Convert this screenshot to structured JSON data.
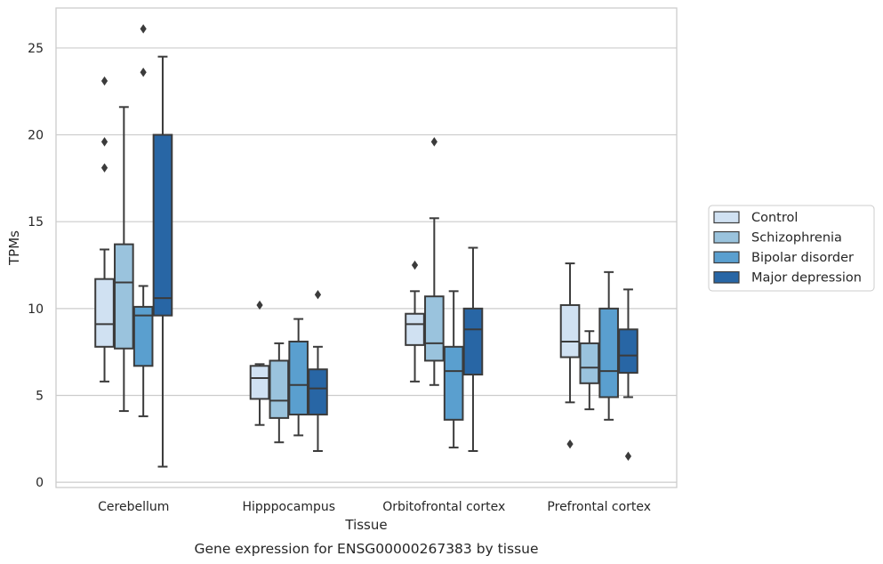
{
  "chart_data": {
    "type": "boxplot",
    "caption": "Gene expression for ENSG00000267383 by tissue",
    "xlabel": "Tissue",
    "ylabel": "TPMs",
    "ylim": [
      -0.3,
      27.3
    ],
    "yticks": [
      0,
      5,
      10,
      15,
      20,
      25
    ],
    "grid": "horizontal",
    "legend_position": "right",
    "categories": [
      "Cerebellum",
      "Hipppocampus",
      "Orbitofrontal cortex",
      "Prefrontal cortex"
    ],
    "series": [
      {
        "name": "Control",
        "color": "#d0e1f2",
        "boxes": [
          {
            "whisker_low": 5.8,
            "q1": 7.8,
            "median": 9.1,
            "q3": 11.7,
            "whisker_high": 13.4,
            "outliers": [
              18.1,
              19.6,
              23.1
            ]
          },
          {
            "whisker_low": 3.3,
            "q1": 4.8,
            "median": 6.0,
            "q3": 6.7,
            "whisker_high": 6.8,
            "outliers": [
              10.2
            ]
          },
          {
            "whisker_low": 5.8,
            "q1": 7.9,
            "median": 9.1,
            "q3": 9.7,
            "whisker_high": 11.0,
            "outliers": [
              12.5
            ]
          },
          {
            "whisker_low": 4.6,
            "q1": 7.2,
            "median": 8.1,
            "q3": 10.2,
            "whisker_high": 12.6,
            "outliers": [
              2.2
            ]
          }
        ]
      },
      {
        "name": "Schizophrenia",
        "color": "#9ac3dd",
        "boxes": [
          {
            "whisker_low": 4.1,
            "q1": 7.7,
            "median": 11.5,
            "q3": 13.7,
            "whisker_high": 21.6,
            "outliers": []
          },
          {
            "whisker_low": 2.3,
            "q1": 3.7,
            "median": 4.7,
            "q3": 7.0,
            "whisker_high": 8.0,
            "outliers": []
          },
          {
            "whisker_low": 5.6,
            "q1": 7.0,
            "median": 8.0,
            "q3": 10.7,
            "whisker_high": 15.2,
            "outliers": [
              19.6
            ]
          },
          {
            "whisker_low": 4.2,
            "q1": 5.7,
            "median": 6.6,
            "q3": 8.0,
            "whisker_high": 8.7,
            "outliers": []
          }
        ]
      },
      {
        "name": "Bipolar disorder",
        "color": "#5a9fcf",
        "boxes": [
          {
            "whisker_low": 3.8,
            "q1": 6.7,
            "median": 9.6,
            "q3": 10.1,
            "whisker_high": 11.3,
            "outliers": [
              23.6,
              26.1
            ]
          },
          {
            "whisker_low": 2.7,
            "q1": 3.9,
            "median": 5.6,
            "q3": 8.1,
            "whisker_high": 9.4,
            "outliers": []
          },
          {
            "whisker_low": 2.0,
            "q1": 3.6,
            "median": 6.4,
            "q3": 7.8,
            "whisker_high": 11.0,
            "outliers": []
          },
          {
            "whisker_low": 3.6,
            "q1": 4.9,
            "median": 6.4,
            "q3": 10.0,
            "whisker_high": 12.1,
            "outliers": []
          }
        ]
      },
      {
        "name": "Major depression",
        "color": "#2866a5",
        "boxes": [
          {
            "whisker_low": 0.9,
            "q1": 9.6,
            "median": 10.6,
            "q3": 20.0,
            "whisker_high": 24.5,
            "outliers": []
          },
          {
            "whisker_low": 1.8,
            "q1": 3.9,
            "median": 5.4,
            "q3": 6.5,
            "whisker_high": 7.8,
            "outliers": [
              10.8
            ]
          },
          {
            "whisker_low": 1.8,
            "q1": 6.2,
            "median": 8.8,
            "q3": 10.0,
            "whisker_high": 13.5,
            "outliers": []
          },
          {
            "whisker_low": 4.9,
            "q1": 6.3,
            "median": 7.3,
            "q3": 8.8,
            "whisker_high": 11.1,
            "outliers": [
              1.5
            ]
          }
        ]
      }
    ]
  }
}
